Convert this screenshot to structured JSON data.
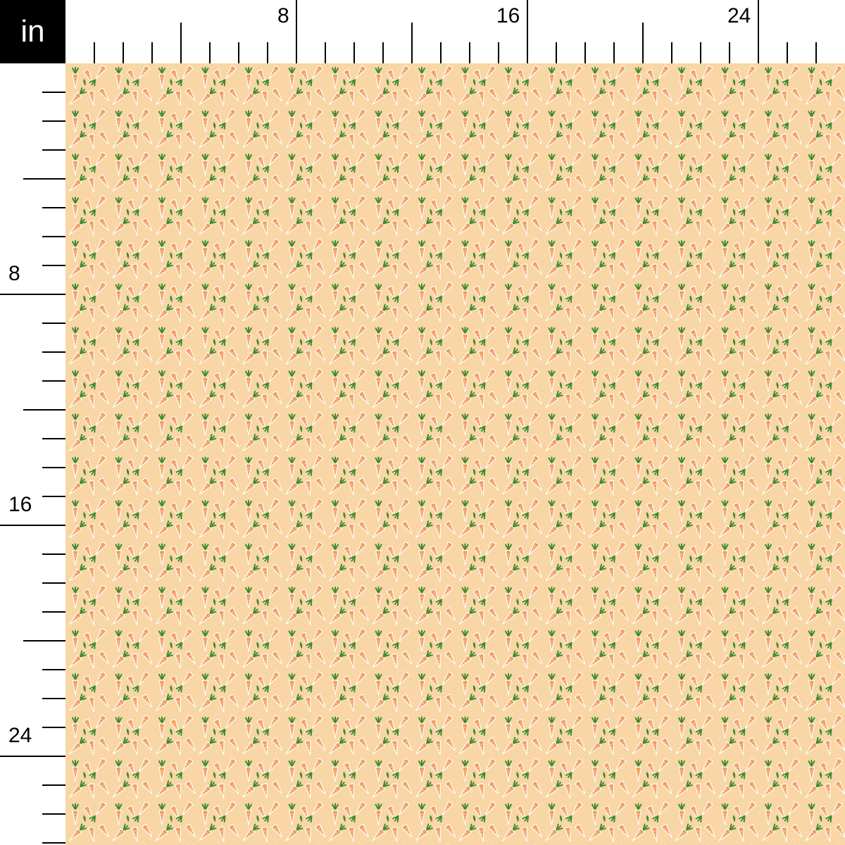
{
  "ruler": {
    "unit_label": "in",
    "top_labels": [
      {
        "value": 8,
        "text": "8"
      },
      {
        "value": 16,
        "text": "16"
      },
      {
        "value": 24,
        "text": "24"
      }
    ],
    "left_labels": [
      {
        "value": 8,
        "text": "8"
      },
      {
        "value": 16,
        "text": "16"
      },
      {
        "value": 24,
        "text": "24"
      }
    ],
    "minor_tick_step_in": 1,
    "major_tick_step_in": 4
  },
  "fabric": {
    "pattern": "small carrots",
    "colors": {
      "background": "#f8d6a5",
      "carrot": "#f4a062",
      "carrot_outline": "#ffffff",
      "leaf": "#3d8b2e",
      "ruler_box": "#000000"
    }
  }
}
